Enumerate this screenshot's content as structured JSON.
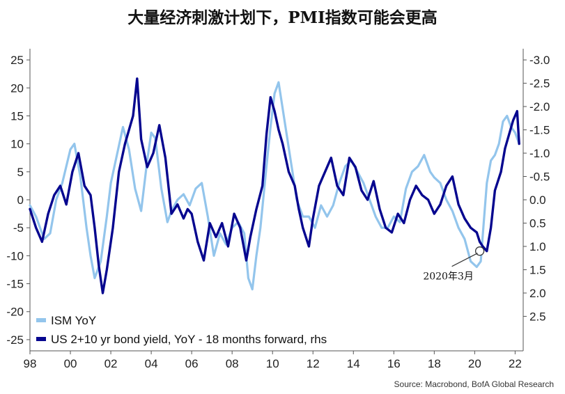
{
  "chart_data": {
    "type": "line",
    "title": "大量经济刺激计划下，PMI指数可能会更高",
    "x_ticks": [
      "98",
      "00",
      "02",
      "04",
      "06",
      "08",
      "10",
      "12",
      "14",
      "16",
      "18",
      "20",
      "22"
    ],
    "x_range": [
      1998,
      2022.4
    ],
    "y_left": {
      "range": [
        -27,
        27
      ],
      "ticks": [
        25,
        20,
        15,
        10,
        5,
        0,
        -5,
        -10,
        -15,
        -20,
        -25
      ]
    },
    "y_right": {
      "inverted": true,
      "range": [
        -3.24,
        3.24
      ],
      "ticks": [
        "-3.0",
        "-2.5",
        "-2.0",
        "-1.5",
        "-1.0",
        "-0.5",
        "0.0",
        "0.5",
        "1.0",
        "1.5",
        "2.0",
        "2.5"
      ]
    },
    "grid": false,
    "legend": "bottom-left",
    "series": [
      {
        "name": "ISM YoY",
        "axis": "left",
        "color": "#93c5ec",
        "x": [
          1998.0,
          1998.3,
          1998.7,
          1999.0,
          1999.3,
          1999.6,
          2000.0,
          2000.2,
          2000.5,
          2000.8,
          2001.0,
          2001.2,
          2001.5,
          2001.8,
          2002.0,
          2002.3,
          2002.6,
          2002.9,
          2003.2,
          2003.5,
          2003.8,
          2004.0,
          2004.2,
          2004.5,
          2004.8,
          2005.0,
          2005.3,
          2005.6,
          2005.9,
          2006.2,
          2006.5,
          2006.8,
          2007.1,
          2007.4,
          2007.7,
          2008.0,
          2008.3,
          2008.6,
          2008.8,
          2009.0,
          2009.2,
          2009.4,
          2009.7,
          2009.9,
          2010.1,
          2010.3,
          2010.6,
          2010.9,
          2011.2,
          2011.5,
          2011.8,
          2012.1,
          2012.4,
          2012.7,
          2013.0,
          2013.3,
          2013.6,
          2013.9,
          2014.2,
          2014.5,
          2014.8,
          2015.1,
          2015.4,
          2015.7,
          2016.0,
          2016.3,
          2016.6,
          2016.9,
          2017.2,
          2017.5,
          2017.8,
          2018.0,
          2018.3,
          2018.6,
          2018.9,
          2019.2,
          2019.5,
          2019.8,
          2020.1,
          2020.3,
          2020.45,
          2020.6,
          2020.8,
          2021.0,
          2021.2,
          2021.4,
          2021.6,
          2021.8,
          2022.0,
          2022.2
        ],
        "y": [
          -1,
          -3,
          -7,
          -6,
          0,
          3,
          9,
          10,
          4,
          -5,
          -10,
          -14,
          -11,
          -3,
          3,
          8,
          13,
          9,
          2,
          -2,
          7,
          12,
          11,
          2,
          -4,
          -2,
          0,
          1,
          -1,
          2,
          3,
          -3,
          -10,
          -6,
          -8,
          -5,
          -4,
          -6,
          -14,
          -16,
          -10,
          -5,
          6,
          13,
          19,
          21,
          14,
          7,
          0,
          -3,
          -3,
          -5,
          -1,
          -3,
          -1,
          3,
          6,
          7,
          5,
          3,
          0,
          -3,
          -5,
          -5,
          -3,
          -4,
          2,
          5,
          6,
          8,
          5,
          4,
          3,
          0,
          -2,
          -5,
          -7,
          -11,
          -12,
          -11,
          -4,
          3,
          7,
          8,
          10,
          14,
          15,
          13,
          12,
          10
        ]
      },
      {
        "name": "US 2+10 yr bond yield, YoY - 18 months forward, rhs",
        "axis": "right",
        "color": "#06068f",
        "x": [
          1998.0,
          1998.3,
          1998.6,
          1998.9,
          1999.2,
          1999.5,
          1999.8,
          2000.1,
          2000.4,
          2000.7,
          2001.0,
          2001.2,
          2001.4,
          2001.6,
          2001.8,
          2002.1,
          2002.4,
          2002.7,
          2002.9,
          2003.1,
          2003.3,
          2003.5,
          2003.8,
          2004.1,
          2004.4,
          2004.7,
          2005.0,
          2005.3,
          2005.6,
          2005.8,
          2006.0,
          2006.3,
          2006.6,
          2006.9,
          2007.2,
          2007.5,
          2007.8,
          2008.1,
          2008.4,
          2008.7,
          2008.9,
          2009.2,
          2009.5,
          2009.7,
          2009.9,
          2010.1,
          2010.3,
          2010.5,
          2010.8,
          2011.1,
          2011.3,
          2011.5,
          2011.8,
          2012.0,
          2012.3,
          2012.6,
          2012.9,
          2013.2,
          2013.5,
          2013.8,
          2014.1,
          2014.4,
          2014.7,
          2015.0,
          2015.3,
          2015.6,
          2015.9,
          2016.2,
          2016.5,
          2016.8,
          2017.1,
          2017.4,
          2017.7,
          2018.0,
          2018.3,
          2018.6,
          2018.9,
          2019.2,
          2019.5,
          2019.8,
          2020.1,
          2020.25,
          2020.4,
          2020.6,
          2020.8,
          2021.0,
          2021.3,
          2021.5,
          2021.7,
          2021.9,
          2022.1,
          2022.2
        ],
        "y": [
          0.2,
          0.6,
          0.9,
          0.3,
          -0.1,
          -0.3,
          0.1,
          -0.6,
          -1.0,
          -0.3,
          -0.1,
          0.6,
          1.4,
          2.0,
          1.5,
          0.6,
          -0.6,
          -1.2,
          -1.5,
          -1.8,
          -2.6,
          -1.3,
          -0.7,
          -1.0,
          -1.6,
          -0.9,
          0.3,
          0.1,
          0.4,
          0.2,
          0.3,
          0.9,
          1.3,
          0.5,
          0.8,
          0.5,
          1.0,
          0.3,
          0.6,
          1.3,
          0.8,
          0.2,
          -0.3,
          -1.4,
          -2.2,
          -1.9,
          -1.5,
          -1.2,
          -0.6,
          -0.3,
          0.2,
          0.6,
          1.0,
          0.4,
          -0.3,
          -0.6,
          -0.9,
          -0.3,
          -0.1,
          -0.9,
          -0.7,
          -0.2,
          0.0,
          -0.4,
          0.2,
          0.6,
          0.7,
          0.3,
          0.5,
          0.0,
          -0.3,
          -0.1,
          0.0,
          0.3,
          0.1,
          -0.3,
          -0.5,
          0.1,
          0.4,
          0.6,
          0.7,
          0.9,
          1.0,
          1.1,
          0.6,
          -0.2,
          -0.6,
          -1.1,
          -1.4,
          -1.7,
          -1.9,
          -1.2
        ]
      }
    ],
    "annotations": [
      {
        "text": "2020年3月",
        "x": 2020.25,
        "y_rhs": 1.1
      }
    ],
    "source": "Source: Macrobond, BofA Global Research"
  }
}
